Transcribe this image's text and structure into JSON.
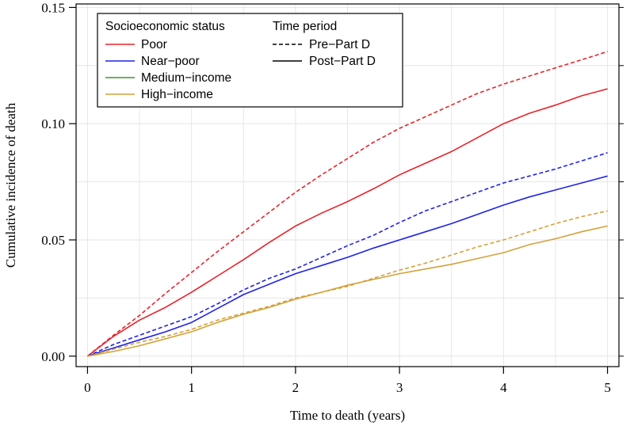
{
  "chart_data": {
    "type": "line",
    "xlabel": "Time to death (years)",
    "ylabel": "Cumulative incidence of death",
    "xlim": [
      -0.11,
      5.11
    ],
    "ylim": [
      -0.0045,
      0.1515
    ],
    "xticks": [
      0,
      1,
      2,
      3,
      4,
      5
    ],
    "xtick_labels": [
      "0",
      "1",
      "2",
      "3",
      "4",
      "5"
    ],
    "yticks": [
      0.0,
      0.05,
      0.1,
      0.15
    ],
    "ytick_labels": [
      "0.00",
      "0.05",
      "0.10",
      "0.15"
    ],
    "grid": true,
    "legend": {
      "placement": "top-left",
      "group_titles": {
        "status": "Socioeconomic status",
        "period": "Time period"
      },
      "status_entries": [
        {
          "label": "Poor",
          "color": "#e8232a"
        },
        {
          "label": "Near−poor",
          "color": "#1f22e8"
        },
        {
          "label": "Medium−income",
          "color": "#3a9a2a"
        },
        {
          "label": "High−income",
          "color": "#d4a23a"
        }
      ],
      "period_entries": [
        {
          "label": "Pre−Part D",
          "linestyle": "dashed"
        },
        {
          "label": "Post−Part D",
          "linestyle": "solid"
        }
      ]
    },
    "series": [
      {
        "group": "Poor",
        "period": "Pre-Part D",
        "color": "#e8232a",
        "linestyle": "dashed",
        "x": [
          0,
          0.25,
          0.5,
          0.75,
          1.0,
          1.25,
          1.5,
          1.75,
          2.0,
          2.25,
          2.5,
          2.75,
          3.0,
          3.25,
          3.5,
          3.75,
          4.0,
          4.25,
          4.5,
          4.75,
          5.0
        ],
        "y": [
          0,
          0.009,
          0.0175,
          0.027,
          0.036,
          0.045,
          0.0535,
          0.062,
          0.0705,
          0.078,
          0.085,
          0.092,
          0.098,
          0.103,
          0.108,
          0.113,
          0.117,
          0.1205,
          0.124,
          0.1275,
          0.131
        ]
      },
      {
        "group": "Poor",
        "period": "Post-Part D",
        "color": "#e8232a",
        "linestyle": "solid",
        "x": [
          0,
          0.25,
          0.5,
          0.75,
          1.0,
          1.25,
          1.5,
          1.75,
          2.0,
          2.25,
          2.5,
          2.75,
          3.0,
          3.25,
          3.5,
          3.75,
          4.0,
          4.25,
          4.5,
          4.75,
          5.0
        ],
        "y": [
          0,
          0.0085,
          0.0155,
          0.021,
          0.0275,
          0.0345,
          0.0415,
          0.049,
          0.056,
          0.0615,
          0.0665,
          0.072,
          0.078,
          0.083,
          0.088,
          0.094,
          0.1,
          0.1045,
          0.108,
          0.112,
          0.115
        ]
      },
      {
        "group": "Near-poor",
        "period": "Pre-Part D",
        "color": "#1f22e8",
        "linestyle": "dashed",
        "x": [
          0,
          0.25,
          0.5,
          0.75,
          1.0,
          1.25,
          1.5,
          1.75,
          2.0,
          2.25,
          2.5,
          2.75,
          3.0,
          3.25,
          3.5,
          3.75,
          4.0,
          4.25,
          4.5,
          4.75,
          5.0
        ],
        "y": [
          0,
          0.005,
          0.009,
          0.013,
          0.017,
          0.0225,
          0.0285,
          0.0335,
          0.0375,
          0.0425,
          0.0475,
          0.052,
          0.0575,
          0.0625,
          0.0665,
          0.0705,
          0.0745,
          0.0775,
          0.0805,
          0.084,
          0.0875
        ]
      },
      {
        "group": "Near-poor",
        "period": "Post-Part D",
        "color": "#1f22e8",
        "linestyle": "solid",
        "x": [
          0,
          0.25,
          0.5,
          0.75,
          1.0,
          1.25,
          1.5,
          1.75,
          2.0,
          2.25,
          2.5,
          2.75,
          3.0,
          3.25,
          3.5,
          3.75,
          4.0,
          4.25,
          4.5,
          4.75,
          5.0
        ],
        "y": [
          0,
          0.0035,
          0.007,
          0.0105,
          0.0145,
          0.0205,
          0.0265,
          0.031,
          0.0355,
          0.039,
          0.0425,
          0.0465,
          0.05,
          0.0535,
          0.057,
          0.061,
          0.065,
          0.0685,
          0.0715,
          0.0745,
          0.0775
        ]
      },
      {
        "group": "High-income",
        "period": "Pre-Part D",
        "color": "#d4a23a",
        "linestyle": "dashed",
        "x": [
          0,
          0.25,
          0.5,
          0.75,
          1.0,
          1.25,
          1.5,
          1.75,
          2.0,
          2.25,
          2.5,
          2.75,
          3.0,
          3.25,
          3.5,
          3.75,
          4.0,
          4.25,
          4.5,
          4.75,
          5.0
        ],
        "y": [
          0,
          0.003,
          0.006,
          0.0085,
          0.0115,
          0.0155,
          0.0185,
          0.0215,
          0.025,
          0.0275,
          0.03,
          0.0335,
          0.037,
          0.04,
          0.0435,
          0.047,
          0.05,
          0.0535,
          0.057,
          0.06,
          0.0625
        ]
      },
      {
        "group": "High-income",
        "period": "Post-Part D",
        "color": "#d4a23a",
        "linestyle": "solid",
        "x": [
          0,
          0.25,
          0.5,
          0.75,
          1.0,
          1.25,
          1.5,
          1.75,
          2.0,
          2.25,
          2.5,
          2.75,
          3.0,
          3.25,
          3.5,
          3.75,
          4.0,
          4.25,
          4.5,
          4.75,
          5.0
        ],
        "y": [
          0,
          0.002,
          0.0045,
          0.0075,
          0.0105,
          0.0145,
          0.018,
          0.021,
          0.0245,
          0.0275,
          0.0305,
          0.033,
          0.0355,
          0.0375,
          0.0395,
          0.042,
          0.0445,
          0.048,
          0.0505,
          0.0535,
          0.056
        ]
      }
    ]
  }
}
